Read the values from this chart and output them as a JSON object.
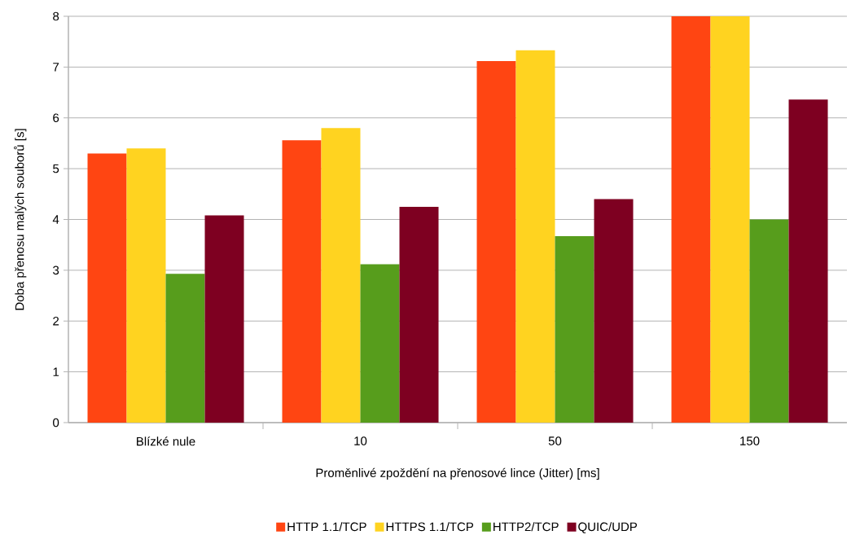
{
  "chart_data": {
    "type": "bar",
    "xlabel": "Proměnlivé zpoždění na přenosové lince (Jitter) [ms]",
    "ylabel": "Doba přenosu malých souborů [s]",
    "categories": [
      "Blízké nule",
      "10",
      "50",
      "150"
    ],
    "series": [
      {
        "name": "HTTP 1.1/TCP",
        "color": "#ff4512",
        "values": [
          5.3,
          5.56,
          7.12,
          8
        ]
      },
      {
        "name": "HTTPS 1.1/TCP",
        "color": "#ffd320",
        "values": [
          5.4,
          5.8,
          7.33,
          8
        ]
      },
      {
        "name": "HTTP2/TCP",
        "color": "#579d1c",
        "values": [
          2.93,
          3.12,
          3.67,
          4.0
        ]
      },
      {
        "name": "QUIC/UDP",
        "color": "#7e0021",
        "values": [
          4.08,
          4.25,
          4.4,
          6.36
        ]
      }
    ],
    "ylim": [
      0,
      8
    ],
    "yticks": [
      0,
      1,
      2,
      3,
      4,
      5,
      6,
      7,
      8
    ],
    "grid": "y",
    "legend": "bottom"
  }
}
